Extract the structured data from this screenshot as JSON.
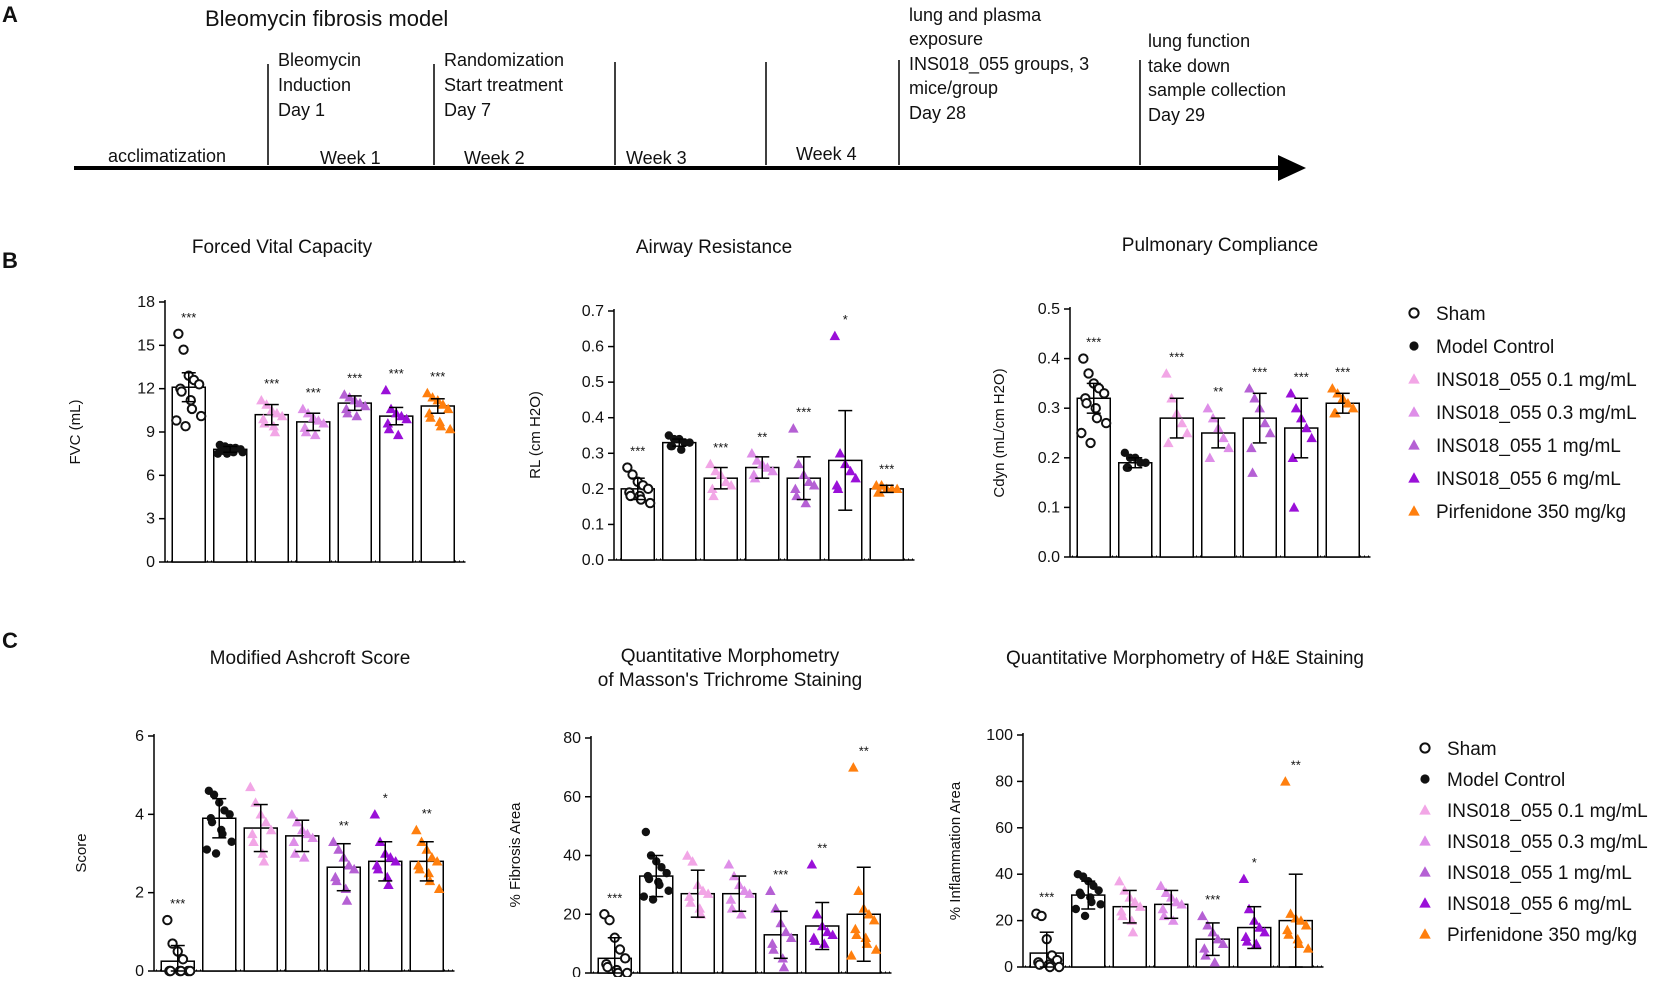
{
  "figure": {
    "panel_letters": [
      "A",
      "B",
      "C"
    ]
  },
  "timeline": {
    "title": "Bleomycin fibrosis model",
    "phase_labels": [
      "acclimatization",
      "Week 1",
      "Week 2",
      "Week 3",
      "Week 4"
    ],
    "events": [
      {
        "lines": [
          "Bleomycin",
          "Induction",
          "Day 1"
        ]
      },
      {
        "lines": [
          "Randomization",
          "Start treatment",
          "Day 7"
        ]
      },
      {
        "lines": [
          "lung and plasma",
          "exposure",
          "INS018_055 groups, 3",
          "mice/group",
          "Day 28"
        ]
      },
      {
        "lines": [
          "lung function",
          "take down",
          "sample collection",
          "Day 29"
        ]
      }
    ]
  },
  "legend": {
    "entries": [
      {
        "label": "Sham",
        "color": "#111111",
        "shape": "open-circle"
      },
      {
        "label": "Model Control",
        "color": "#111111",
        "shape": "filled-circle"
      },
      {
        "label": "INS018_055 0.1 mg/mL",
        "color": "#f2a6e6",
        "shape": "triangle"
      },
      {
        "label": "INS018_055 0.3 mg/mL",
        "color": "#de8ee8",
        "shape": "triangle"
      },
      {
        "label": "INS018_055 1 mg/mL",
        "color": "#b560d4",
        "shape": "triangle"
      },
      {
        "label": "INS018_055 6 mg/mL",
        "color": "#9a10d8",
        "shape": "triangle"
      },
      {
        "label": "Pirfenidone 350 mg/kg",
        "color": "#ff7f0e",
        "shape": "triangle"
      }
    ]
  },
  "chart_data": [
    {
      "type": "bar",
      "title": "Forced Vital Capacity",
      "ylabel": "FVC (mL)",
      "ylim": [
        0,
        18
      ],
      "yticks": [
        "0",
        "3",
        "6",
        "9",
        "12",
        "15",
        "18"
      ],
      "groups": [
        "Sham",
        "Model Control",
        "INS018_055 0.1 mg/mL",
        "INS018_055 0.3 mg/mL",
        "INS018_055 1 mg/mL",
        "INS018_055 6 mg/mL",
        "Pirfenidone 350 mg/kg"
      ],
      "means": [
        12.1,
        7.8,
        10.2,
        9.7,
        11.0,
        10.1,
        10.8
      ],
      "sd": [
        1.0,
        0.2,
        0.7,
        0.6,
        0.5,
        0.6,
        0.5
      ],
      "significance": [
        "***",
        "",
        "***",
        "***",
        "***",
        "***",
        "***"
      ],
      "points": [
        [
          15.8,
          14.7,
          12.9,
          12.6,
          12.3,
          12.0,
          11.8,
          11.2,
          10.6,
          10.1,
          9.8,
          9.4
        ],
        [
          8.1,
          8.0,
          7.9,
          7.9,
          7.8,
          7.8,
          7.7,
          7.7,
          7.6,
          7.6,
          7.5,
          7.5
        ],
        [
          11.2,
          10.9,
          10.5,
          10.3,
          10.1,
          9.9,
          9.6,
          9.4,
          9.0
        ],
        [
          10.6,
          10.3,
          10.0,
          9.8,
          9.6,
          9.3,
          9.0,
          8.8
        ],
        [
          11.6,
          11.4,
          11.2,
          11.0,
          10.8,
          10.6,
          10.3,
          10.1
        ],
        [
          11.9,
          10.6,
          10.3,
          10.1,
          9.9,
          9.6,
          9.2,
          8.8
        ],
        [
          11.7,
          11.4,
          11.2,
          10.9,
          10.6,
          10.3,
          10.0,
          9.7,
          9.4,
          9.2
        ]
      ]
    },
    {
      "type": "bar",
      "title": "Airway Resistance",
      "ylabel": "RL   (cm H2O)",
      "ylim": [
        0,
        0.7
      ],
      "yticks": [
        "0.0",
        "0.1",
        "0.2",
        "0.3",
        "0.4",
        "0.5",
        "0.6",
        "0.7"
      ],
      "groups": [
        "Sham",
        "Model Control",
        "INS018_055 0.1 mg/mL",
        "INS018_055 0.3 mg/mL",
        "INS018_055 1 mg/mL",
        "INS018_055 6 mg/mL",
        "Pirfenidone 350 mg/kg"
      ],
      "means": [
        0.2,
        0.33,
        0.23,
        0.26,
        0.23,
        0.28,
        0.2
      ],
      "sd": [
        0.03,
        0.01,
        0.03,
        0.03,
        0.06,
        0.14,
        0.01
      ],
      "significance": [
        "***",
        "",
        "***",
        "**",
        "***",
        "*",
        "***"
      ],
      "points": [
        [
          0.26,
          0.24,
          0.22,
          0.21,
          0.2,
          0.19,
          0.18,
          0.18,
          0.17,
          0.16
        ],
        [
          0.35,
          0.34,
          0.34,
          0.33,
          0.33,
          0.32,
          0.32,
          0.31
        ],
        [
          0.27,
          0.25,
          0.24,
          0.22,
          0.21,
          0.2,
          0.18
        ],
        [
          0.3,
          0.28,
          0.27,
          0.26,
          0.25,
          0.24,
          0.23
        ],
        [
          0.37,
          0.27,
          0.24,
          0.22,
          0.21,
          0.2,
          0.18,
          0.16
        ],
        [
          0.63,
          0.3,
          0.27,
          0.25,
          0.23,
          0.21,
          0.2
        ],
        [
          0.21,
          0.21,
          0.2,
          0.2,
          0.2,
          0.19,
          0.19
        ]
      ]
    },
    {
      "type": "bar",
      "title": "Pulmonary Compliance",
      "ylabel": "Cdyn   (mL/cm H2O)",
      "ylim": [
        0,
        0.5
      ],
      "yticks": [
        "0.0",
        "0.1",
        "0.2",
        "0.3",
        "0.4",
        "0.5"
      ],
      "groups": [
        "Sham",
        "Model Control",
        "INS018_055 0.1 mg/mL",
        "INS018_055 0.3 mg/mL",
        "INS018_055 1 mg/mL",
        "INS018_055 6 mg/mL",
        "Pirfenidone 350 mg/kg"
      ],
      "means": [
        0.32,
        0.19,
        0.28,
        0.25,
        0.28,
        0.26,
        0.31
      ],
      "sd": [
        0.03,
        0.01,
        0.04,
        0.03,
        0.05,
        0.06,
        0.02
      ],
      "significance": [
        "***",
        "",
        "***",
        "**",
        "***",
        "***",
        "***"
      ],
      "points": [
        [
          0.4,
          0.37,
          0.35,
          0.34,
          0.33,
          0.32,
          0.31,
          0.3,
          0.28,
          0.27,
          0.25,
          0.23
        ],
        [
          0.21,
          0.2,
          0.2,
          0.19,
          0.19,
          0.18,
          0.18
        ],
        [
          0.37,
          0.32,
          0.29,
          0.27,
          0.25,
          0.23
        ],
        [
          0.3,
          0.28,
          0.26,
          0.24,
          0.22,
          0.2
        ],
        [
          0.34,
          0.32,
          0.3,
          0.27,
          0.25,
          0.22,
          0.17
        ],
        [
          0.33,
          0.3,
          0.28,
          0.26,
          0.24,
          0.2,
          0.1
        ],
        [
          0.34,
          0.33,
          0.32,
          0.31,
          0.3,
          0.29,
          0.29
        ]
      ]
    },
    {
      "type": "bar",
      "title": "Modified Ashcroft Score",
      "ylabel": "Score",
      "ylim": [
        0,
        6
      ],
      "yticks": [
        "0",
        "2",
        "4",
        "6"
      ],
      "groups": [
        "Sham",
        "Model Control",
        "INS018_055 0.1 mg/mL",
        "INS018_055 0.3 mg/mL",
        "INS018_055 1 mg/mL",
        "INS018_055 6 mg/mL",
        "Pirfenidone 350 mg/kg"
      ],
      "means": [
        0.25,
        3.9,
        3.65,
        3.45,
        2.65,
        2.8,
        2.8
      ],
      "sd": [
        0.4,
        0.5,
        0.6,
        0.4,
        0.6,
        0.5,
        0.5
      ],
      "significance": [
        "***",
        "",
        "",
        "",
        "**",
        "*",
        "**"
      ],
      "points": [
        [
          1.3,
          0.7,
          0.5,
          0.3,
          0.0,
          0.0,
          0.0,
          0.0,
          0.0,
          0.0
        ],
        [
          4.6,
          4.5,
          4.3,
          4.1,
          4.0,
          3.9,
          3.8,
          3.6,
          3.5,
          3.3,
          3.1,
          3.0
        ],
        [
          4.7,
          4.3,
          4.0,
          3.8,
          3.6,
          3.5,
          3.3,
          3.0,
          2.8
        ],
        [
          4.0,
          3.8,
          3.6,
          3.5,
          3.4,
          3.3,
          3.0,
          2.9
        ],
        [
          3.3,
          3.1,
          2.9,
          2.7,
          2.6,
          2.4,
          2.3,
          2.1,
          1.8
        ],
        [
          4.0,
          3.3,
          3.0,
          2.9,
          2.8,
          2.7,
          2.6,
          2.4,
          2.2
        ],
        [
          3.6,
          3.3,
          3.1,
          2.9,
          2.8,
          2.7,
          2.6,
          2.5,
          2.3,
          2.1
        ]
      ]
    },
    {
      "type": "bar",
      "title_lines": [
        "Quantitative Morphometry",
        "of Masson's Trichrome Staining"
      ],
      "ylabel": "% Fibrosis Area",
      "ylim": [
        0,
        80
      ],
      "yticks": [
        "0",
        "20",
        "40",
        "60",
        "80"
      ],
      "groups": [
        "Sham",
        "Model Control",
        "INS018_055 0.1 mg/mL",
        "INS018_055 0.3 mg/mL",
        "INS018_055 1 mg/mL",
        "INS018_055 6 mg/mL",
        "Pirfenidone 350 mg/kg"
      ],
      "means": [
        5,
        33,
        27,
        27,
        13,
        16,
        20
      ],
      "sd": [
        7,
        7,
        8,
        6,
        8,
        8,
        16
      ],
      "significance": [
        "***",
        "",
        "",
        "",
        "***",
        "**",
        "**"
      ],
      "points": [
        [
          20,
          18,
          12,
          8,
          5,
          3,
          2,
          1,
          0,
          0
        ],
        [
          48,
          40,
          38,
          36,
          34,
          33,
          32,
          31,
          30,
          28,
          26,
          25
        ],
        [
          40,
          38,
          30,
          28,
          27,
          26,
          24,
          22,
          20
        ],
        [
          37,
          33,
          30,
          28,
          27,
          25,
          22,
          20
        ],
        [
          28,
          22,
          17,
          14,
          12,
          10,
          8,
          5,
          2
        ],
        [
          37,
          20,
          16,
          14,
          13,
          12,
          11,
          10
        ],
        [
          70,
          28,
          22,
          20,
          18,
          15,
          13,
          12,
          10,
          8,
          6
        ]
      ]
    },
    {
      "type": "bar",
      "title": "Quantitative Morphometry of H&E Staining",
      "ylabel": "% Inflammation Area",
      "ylim": [
        0,
        100
      ],
      "yticks": [
        "0",
        "20",
        "40",
        "60",
        "80",
        "100"
      ],
      "groups": [
        "Sham",
        "Model Control",
        "INS018_055 0.1 mg/mL",
        "INS018_055 0.3 mg/mL",
        "INS018_055 1 mg/mL",
        "INS018_055 6 mg/mL",
        "Pirfenidone 350 mg/kg"
      ],
      "means": [
        6,
        31,
        26,
        27,
        12,
        17,
        20
      ],
      "sd": [
        9,
        6,
        7,
        6,
        7,
        9,
        20
      ],
      "significance": [
        "***",
        "",
        "",
        "",
        "***",
        "*",
        "**"
      ],
      "points": [
        [
          23,
          22,
          12,
          5,
          3,
          2,
          1,
          1,
          0,
          0
        ],
        [
          40,
          39,
          37,
          35,
          33,
          32,
          31,
          30,
          28,
          27,
          25,
          22
        ],
        [
          37,
          33,
          30,
          28,
          26,
          24,
          22,
          20,
          15
        ],
        [
          35,
          32,
          30,
          28,
          27,
          25,
          22,
          20
        ],
        [
          22,
          18,
          15,
          12,
          10,
          8,
          5,
          2
        ],
        [
          38,
          25,
          20,
          17,
          15,
          13,
          11,
          10
        ],
        [
          80,
          23,
          21,
          20,
          18,
          16,
          14,
          12,
          10,
          8
        ]
      ]
    }
  ]
}
